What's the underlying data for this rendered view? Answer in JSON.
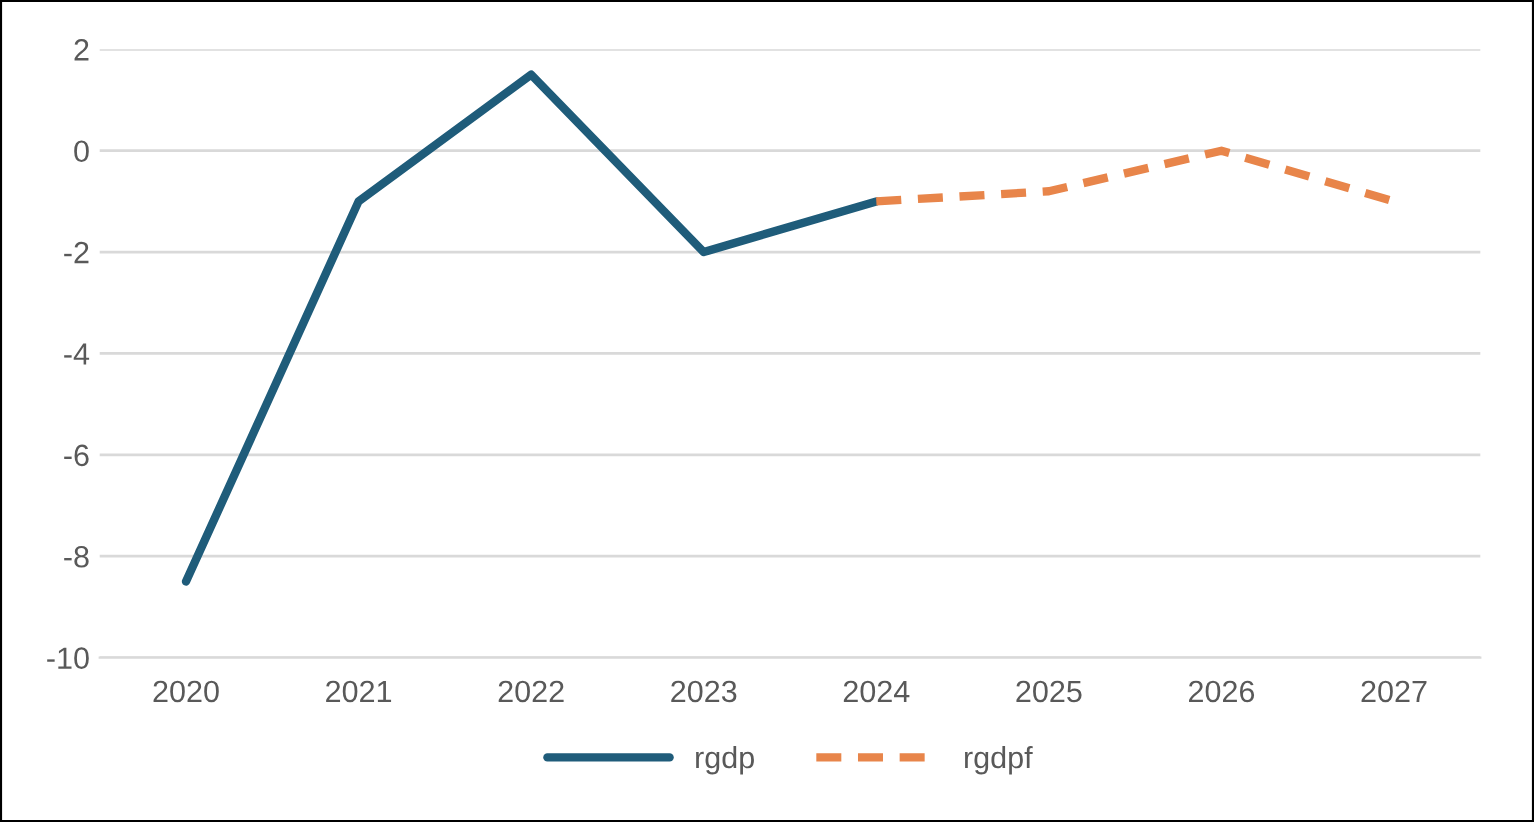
{
  "chart_data": {
    "type": "line",
    "categories": [
      "2020",
      "2021",
      "2022",
      "2023",
      "2024",
      "2025",
      "2026",
      "2027"
    ],
    "series": [
      {
        "name": "rgdp",
        "color": "#1f5c7a",
        "line_style": "solid",
        "values": [
          -8.5,
          -1,
          1.5,
          -2,
          -1,
          null,
          null,
          null
        ]
      },
      {
        "name": "rgdpf",
        "color": "#e8854a",
        "line_style": "dashed",
        "values": [
          null,
          null,
          null,
          null,
          -1,
          -0.8,
          0,
          -1
        ]
      }
    ],
    "ylim": [
      -10,
      2
    ],
    "yticks": [
      -10,
      -8,
      -6,
      -4,
      -2,
      0,
      2
    ],
    "grid": "y",
    "legend": "bottom"
  }
}
